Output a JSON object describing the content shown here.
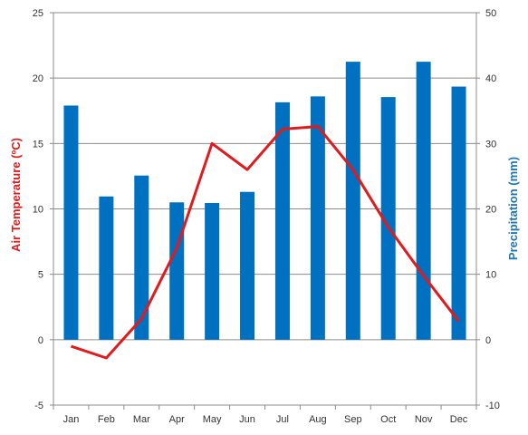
{
  "chart_data": {
    "type": "bar",
    "categories": [
      "Jan",
      "Feb",
      "Mar",
      "Apr",
      "May",
      "Jun",
      "Jul",
      "Aug",
      "Sep",
      "Oct",
      "Nov",
      "Dec"
    ],
    "series": [
      {
        "name": "Precipitation",
        "type": "bar",
        "axis": "right",
        "color": "#0070c0",
        "values": [
          35.8,
          21.9,
          25.1,
          21.0,
          20.9,
          22.6,
          36.3,
          37.2,
          42.5,
          37.1,
          42.5,
          38.7
        ]
      },
      {
        "name": "Air Temperature",
        "type": "line",
        "axis": "left",
        "color": "#e31a1c",
        "values": [
          -0.5,
          -1.4,
          1.6,
          7.0,
          15.0,
          13.0,
          16.1,
          16.3,
          13.0,
          8.6,
          4.9,
          1.4
        ]
      }
    ],
    "ylabel_left": "Air Temperature (ºC)",
    "ylabel_right": "Precipitation (mm)",
    "ylim_left": [
      -5,
      25
    ],
    "ylim_right": [
      -10,
      50
    ],
    "yticks_left": [
      "-5",
      "0",
      "5",
      "10",
      "15",
      "20",
      "25"
    ],
    "yticks_right": [
      "-10",
      "0",
      "10",
      "20",
      "30",
      "40",
      "50"
    ],
    "grid": true,
    "legend": "none"
  }
}
